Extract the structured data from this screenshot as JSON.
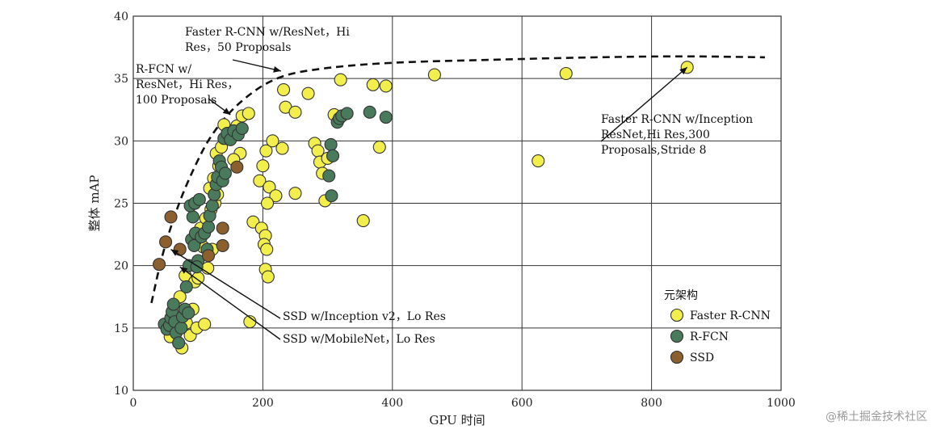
{
  "chart_data": {
    "type": "scatter",
    "xlabel": "GPU 时间",
    "ylabel": "整体 mAP",
    "xlim": [
      0,
      1000
    ],
    "ylim": [
      10,
      40
    ],
    "xticks": [
      0,
      200,
      400,
      600,
      800,
      1000
    ],
    "yticks": [
      10,
      15,
      20,
      25,
      30,
      35,
      40
    ],
    "grid": true,
    "legend": {
      "title": "元架构",
      "placement": "bottom-right",
      "entries": [
        "Faster R-CNN",
        "R-FCN",
        "SSD"
      ]
    },
    "series": [
      {
        "name": "Faster R-CNN",
        "color": "#f2ee4c",
        "points": [
          [
            57,
            14.3
          ],
          [
            63,
            15.2
          ],
          [
            67,
            16.6
          ],
          [
            72,
            17.5
          ],
          [
            75,
            13.4
          ],
          [
            82,
            15.4
          ],
          [
            88,
            14.4
          ],
          [
            92,
            16.5
          ],
          [
            98,
            15.0
          ],
          [
            110,
            15.3
          ],
          [
            80,
            19.2
          ],
          [
            95,
            18.7
          ],
          [
            100,
            19.0
          ],
          [
            115,
            19.8
          ],
          [
            108,
            21.5
          ],
          [
            122,
            21.3
          ],
          [
            96,
            22.0
          ],
          [
            104,
            23.0
          ],
          [
            112,
            23.8
          ],
          [
            120,
            24.5
          ],
          [
            126,
            25.0
          ],
          [
            130,
            25.7
          ],
          [
            118,
            26.2
          ],
          [
            124,
            27.0
          ],
          [
            132,
            28.0
          ],
          [
            128,
            29.0
          ],
          [
            136,
            29.5
          ],
          [
            145,
            30.2
          ],
          [
            150,
            30.8
          ],
          [
            160,
            31.2
          ],
          [
            168,
            32.0
          ],
          [
            178,
            32.2
          ],
          [
            140,
            31.3
          ],
          [
            165,
            29.0
          ],
          [
            155,
            28.5
          ],
          [
            200,
            28.0
          ],
          [
            195,
            26.8
          ],
          [
            205,
            29.2
          ],
          [
            210,
            26.3
          ],
          [
            220,
            25.6
          ],
          [
            207,
            25.0
          ],
          [
            185,
            23.5
          ],
          [
            198,
            23.0
          ],
          [
            204,
            22.4
          ],
          [
            202,
            21.7
          ],
          [
            206,
            21.3
          ],
          [
            204,
            19.7
          ],
          [
            208,
            19.1
          ],
          [
            180,
            15.5
          ],
          [
            215,
            30.0
          ],
          [
            230,
            29.4
          ],
          [
            235,
            32.7
          ],
          [
            232,
            34.1
          ],
          [
            250,
            32.3
          ],
          [
            250,
            25.8
          ],
          [
            270,
            33.8
          ],
          [
            280,
            29.8
          ],
          [
            285,
            29.2
          ],
          [
            288,
            28.3
          ],
          [
            292,
            27.4
          ],
          [
            296,
            25.2
          ],
          [
            300,
            28.6
          ],
          [
            310,
            32.1
          ],
          [
            320,
            34.9
          ],
          [
            355,
            23.6
          ],
          [
            370,
            34.5
          ],
          [
            380,
            29.5
          ],
          [
            390,
            34.4
          ],
          [
            465,
            35.3
          ],
          [
            625,
            28.4
          ],
          [
            668,
            35.4
          ],
          [
            855,
            35.9
          ]
        ]
      },
      {
        "name": "R-FCN",
        "color": "#4a7a5c",
        "points": [
          [
            48,
            15.3
          ],
          [
            52,
            14.9
          ],
          [
            56,
            15.2
          ],
          [
            58,
            15.8
          ],
          [
            60,
            16.3
          ],
          [
            62,
            16.9
          ],
          [
            64,
            15.5
          ],
          [
            66,
            14.6
          ],
          [
            70,
            13.8
          ],
          [
            74,
            15.0
          ],
          [
            76,
            15.9
          ],
          [
            80,
            16.5
          ],
          [
            85,
            16.2
          ],
          [
            82,
            18.3
          ],
          [
            86,
            20.0
          ],
          [
            90,
            22.1
          ],
          [
            94,
            21.6
          ],
          [
            96,
            22.6
          ],
          [
            100,
            20.4
          ],
          [
            92,
            23.9
          ],
          [
            88,
            24.8
          ],
          [
            95,
            25.0
          ],
          [
            102,
            25.3
          ],
          [
            98,
            19.9
          ],
          [
            105,
            22.3
          ],
          [
            110,
            22.6
          ],
          [
            114,
            21.3
          ],
          [
            116,
            23.1
          ],
          [
            118,
            24.0
          ],
          [
            122,
            24.8
          ],
          [
            125,
            25.7
          ],
          [
            128,
            26.5
          ],
          [
            130,
            27.1
          ],
          [
            133,
            28.4
          ],
          [
            136,
            27.9
          ],
          [
            138,
            26.8
          ],
          [
            142,
            27.4
          ],
          [
            140,
            30.2
          ],
          [
            145,
            30.6
          ],
          [
            150,
            30.1
          ],
          [
            155,
            30.8
          ],
          [
            162,
            30.5
          ],
          [
            168,
            31.0
          ],
          [
            305,
            29.7
          ],
          [
            308,
            28.8
          ],
          [
            302,
            27.2
          ],
          [
            306,
            25.6
          ],
          [
            315,
            31.5
          ],
          [
            318,
            31.8
          ],
          [
            322,
            32.0
          ],
          [
            330,
            32.2
          ],
          [
            365,
            32.3
          ],
          [
            390,
            31.9
          ]
        ]
      },
      {
        "name": "SSD",
        "color": "#8c5f2e",
        "points": [
          [
            40,
            20.1
          ],
          [
            50,
            21.9
          ],
          [
            58,
            23.9
          ],
          [
            72,
            21.3
          ],
          [
            116,
            20.8
          ],
          [
            138,
            21.6
          ],
          [
            138,
            23.0
          ],
          [
            160,
            27.9
          ]
        ]
      }
    ],
    "pareto_frontier": {
      "style": "dashed",
      "points": [
        [
          28,
          17.0
        ],
        [
          45,
          21.0
        ],
        [
          70,
          25.0
        ],
        [
          95,
          28.0
        ],
        [
          120,
          30.5
        ],
        [
          160,
          33.0
        ],
        [
          220,
          35.2
        ],
        [
          300,
          35.9
        ],
        [
          400,
          36.3
        ],
        [
          550,
          36.5
        ],
        [
          700,
          36.7
        ],
        [
          850,
          36.8
        ],
        [
          975,
          36.7
        ]
      ]
    },
    "annotations": [
      {
        "lines": [
          "Faster R-CNN w/ResNet，Hi",
          "Res，50 Proposals"
        ],
        "target": [
          228,
          35.6
        ]
      },
      {
        "lines": [
          "R-FCN w/",
          "ResNet，Hi Res，",
          "100 Proposals"
        ],
        "target": [
          150,
          32.1
        ]
      },
      {
        "lines": [
          "Faster R-CNN w/Inception",
          "ResNet,Hi Res,300",
          "Proposals,Stride 8"
        ],
        "target": [
          855,
          35.9
        ]
      },
      {
        "lines": [
          "SSD w/Inception v2，Lo Res"
        ],
        "target": [
          58,
          21.3
        ]
      },
      {
        "lines": [
          "SSD w/MobileNet，Lo Res"
        ],
        "target": [
          72,
          19.9
        ]
      }
    ],
    "watermark": "@稀土掘金技术社区"
  }
}
